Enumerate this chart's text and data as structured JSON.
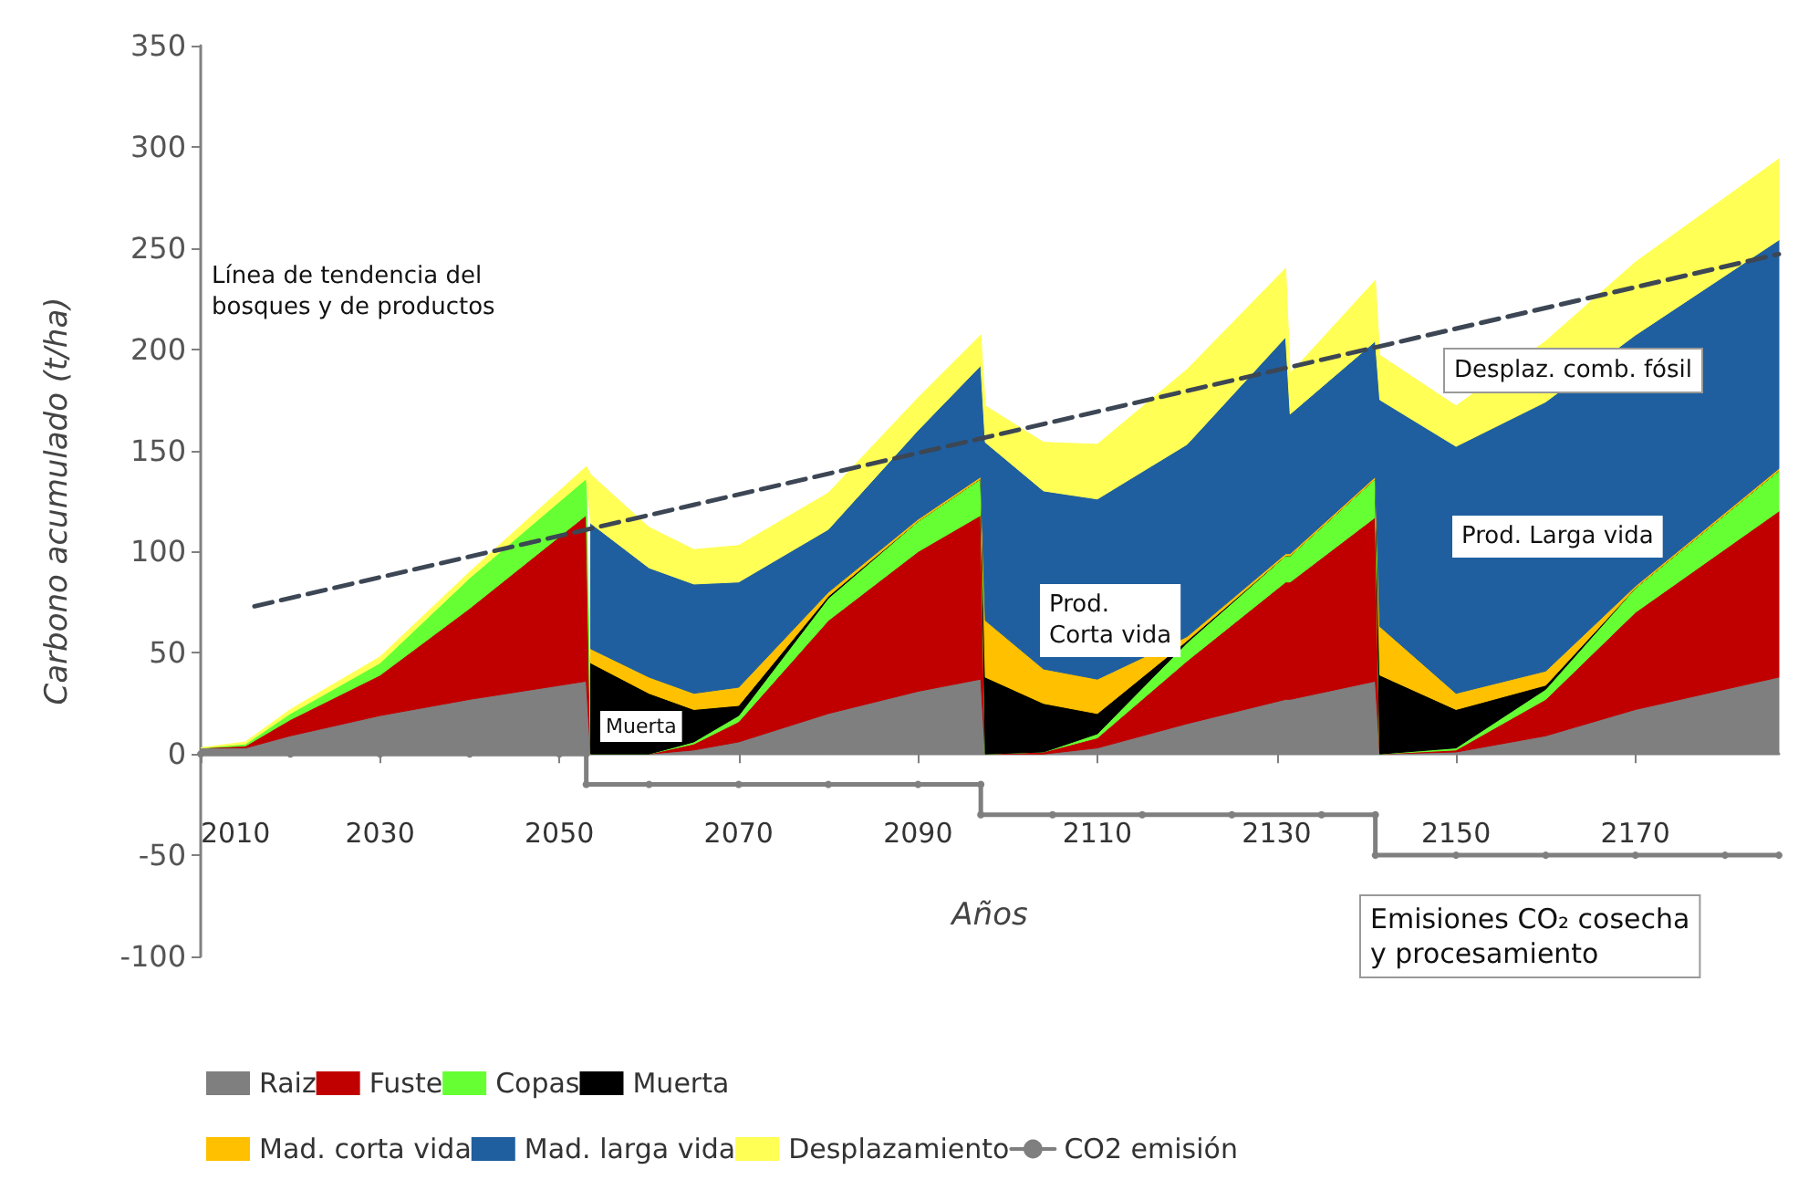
{
  "chart_data": {
    "type": "area",
    "stacked": true,
    "xlabel": "Años",
    "ylabel": "Carbono acumulado (t/ha)",
    "legend": "bottom",
    "xlim": [
      2010,
      2186
    ],
    "xticks": [
      2010,
      2030,
      2050,
      2070,
      2090,
      2110,
      2130,
      2150,
      2170
    ],
    "ylim": [
      -100,
      350
    ],
    "yticks": [
      -100,
      -50,
      0,
      50,
      100,
      150,
      200,
      250,
      300,
      350
    ],
    "x": [
      2010,
      2015,
      2020,
      2030,
      2040,
      2053,
      2053.5,
      2060,
      2065,
      2070,
      2080,
      2090,
      2097,
      2097.5,
      2104,
      2110,
      2120,
      2131,
      2131.5,
      2141,
      2141.5,
      2150,
      2160,
      2170,
      2186
    ],
    "series": [
      {
        "name": "Raiz",
        "color": "#7f7f7f",
        "values": [
          3,
          3,
          9,
          19,
          27,
          36,
          0,
          0,
          2,
          6,
          20,
          31,
          37,
          0,
          0,
          3,
          15,
          27,
          27,
          36,
          0,
          1,
          9,
          22,
          38
        ]
      },
      {
        "name": "Fuste",
        "color": "#c00000",
        "values": [
          0,
          1,
          8,
          20,
          45,
          82,
          0,
          0,
          3,
          10,
          46,
          69,
          81,
          0,
          1,
          5,
          31,
          58,
          58,
          81,
          0,
          1,
          18,
          48,
          82
        ]
      },
      {
        "name": "Copas",
        "color": "#66ff33",
        "values": [
          0,
          1,
          3,
          6,
          15,
          18,
          0,
          0,
          1,
          3,
          11,
          15,
          18,
          0,
          0,
          2,
          9,
          13,
          13,
          19,
          0,
          1,
          5,
          12,
          20
        ]
      },
      {
        "name": "Muerta",
        "color": "#000000",
        "values": [
          null,
          null,
          null,
          null,
          null,
          null,
          45,
          30,
          16,
          5,
          1,
          0,
          0,
          38,
          24,
          10,
          1,
          0,
          0,
          0,
          39,
          19,
          2,
          0,
          0
        ]
      },
      {
        "name": "Mad. corta vida",
        "color": "#ffc000",
        "values": [
          null,
          null,
          null,
          null,
          null,
          null,
          7,
          8,
          8,
          9,
          2,
          1,
          1,
          28,
          17,
          17,
          2,
          1,
          1,
          1,
          24,
          8,
          7,
          1,
          1
        ]
      },
      {
        "name": "Mad. larga vida",
        "color": "#1f5f9f",
        "values": [
          null,
          null,
          null,
          null,
          null,
          null,
          62,
          54,
          54,
          52,
          31,
          44,
          55,
          88,
          88,
          89,
          95,
          107,
          69,
          67,
          112,
          122,
          133,
          124,
          113
        ]
      },
      {
        "name": "Desplazamiento",
        "color": "#ffff55",
        "values": [
          0,
          1,
          2,
          3,
          3,
          6,
          24,
          20,
          17,
          18,
          18,
          16,
          15,
          18,
          24,
          27,
          37,
          34,
          20,
          30,
          22,
          20,
          30,
          36,
          40
        ]
      },
      {
        "name": "CO2 emisión",
        "type": "line",
        "color": "#7f7f7f",
        "marker": "circle",
        "x": [
          2010,
          2020,
          2030,
          2040,
          2050,
          2053,
          2053,
          2060,
          2070,
          2080,
          2090,
          2097,
          2097,
          2105,
          2115,
          2125,
          2135,
          2141,
          2141,
          2150,
          2160,
          2170,
          2180,
          2186
        ],
        "values": [
          0,
          0,
          0,
          0,
          0,
          0,
          -15,
          -15,
          -15,
          -15,
          -15,
          -15,
          -30,
          -30,
          -30,
          -30,
          -30,
          -30,
          -50,
          -50,
          -50,
          -50,
          -50,
          -50
        ]
      },
      {
        "type": "line",
        "color": "#3c4654",
        "line_style": "dashed",
        "marker": "none",
        "x": [
          2016,
          2186
        ],
        "values": [
          73,
          247
        ]
      }
    ],
    "annotations": [
      "Línea de tendencia del\nbosques y de productos",
      "Muerta",
      "Prod.\nCorta vida",
      "Prod. Larga vida",
      "Desplaz. comb. fósil",
      "Emisiones CO₂ cosecha\ny procesamiento"
    ]
  }
}
